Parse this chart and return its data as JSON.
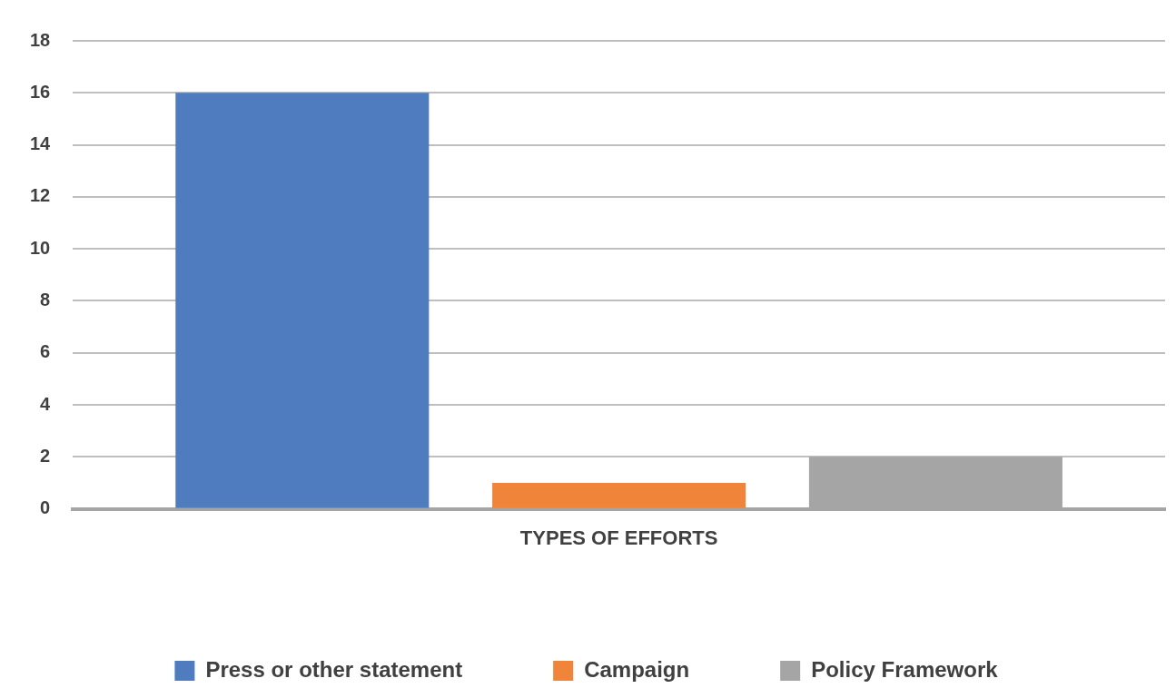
{
  "chart_data": {
    "type": "bar",
    "categories": [
      "TYPES OF EFFORTS"
    ],
    "series": [
      {
        "name": "Press or other statement",
        "color": "#4f7bbf",
        "values": [
          16
        ]
      },
      {
        "name": "Campaign",
        "color": "#f0843a",
        "values": [
          1
        ]
      },
      {
        "name": "Policy Framework",
        "color": "#a5a5a5",
        "values": [
          2
        ]
      }
    ],
    "ylim": [
      0,
      18
    ],
    "yticks": [
      0,
      2,
      4,
      6,
      8,
      10,
      12,
      14,
      16,
      18
    ],
    "grid": "y",
    "legend": "bottom"
  }
}
